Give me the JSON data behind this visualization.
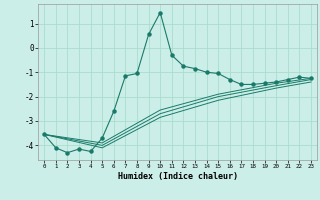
{
  "xlabel": "Humidex (Indice chaleur)",
  "bg_color": "#cceee8",
  "grid_color": "#aaddcc",
  "line_color": "#1a7a6a",
  "xlim": [
    -0.5,
    23.5
  ],
  "ylim": [
    -4.6,
    1.8
  ],
  "yticks": [
    -4,
    -3,
    -2,
    -1,
    0,
    1
  ],
  "xticks": [
    0,
    1,
    2,
    3,
    4,
    5,
    6,
    7,
    8,
    9,
    10,
    11,
    12,
    13,
    14,
    15,
    16,
    17,
    18,
    19,
    20,
    21,
    22,
    23
  ],
  "main_series": {
    "x": [
      0,
      1,
      2,
      3,
      4,
      5,
      6,
      7,
      8,
      9,
      10,
      11,
      12,
      13,
      14,
      15,
      16,
      17,
      18,
      19,
      20,
      21,
      22,
      23
    ],
    "y": [
      -3.55,
      -4.1,
      -4.3,
      -4.15,
      -4.25,
      -3.7,
      -2.6,
      -1.15,
      -1.05,
      0.55,
      1.45,
      -0.3,
      -0.75,
      -0.85,
      -1.0,
      -1.05,
      -1.3,
      -1.5,
      -1.5,
      -1.45,
      -1.4,
      -1.3,
      -1.2,
      -1.25
    ]
  },
  "aux_series": [
    {
      "x": [
        0,
        5,
        10,
        15,
        20,
        23
      ],
      "y": [
        -3.55,
        -3.9,
        -2.55,
        -1.9,
        -1.45,
        -1.25
      ]
    },
    {
      "x": [
        0,
        5,
        10,
        15,
        20,
        23
      ],
      "y": [
        -3.55,
        -4.0,
        -2.7,
        -2.0,
        -1.55,
        -1.3
      ]
    },
    {
      "x": [
        0,
        5,
        10,
        15,
        20,
        23
      ],
      "y": [
        -3.55,
        -4.1,
        -2.85,
        -2.15,
        -1.65,
        -1.4
      ]
    }
  ]
}
